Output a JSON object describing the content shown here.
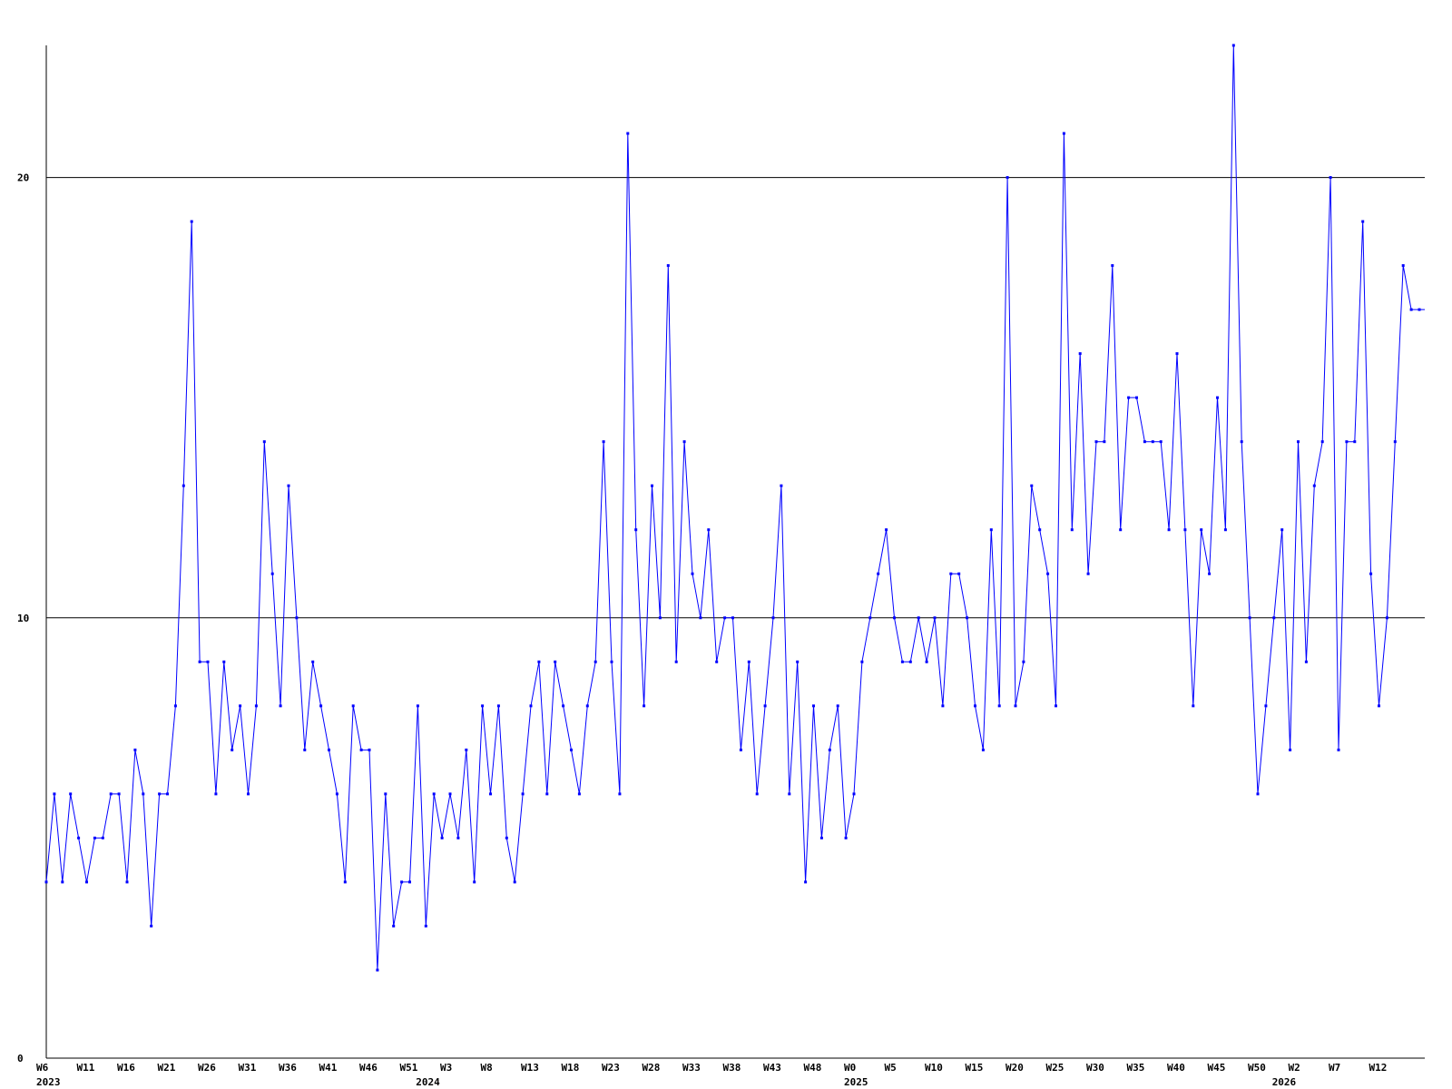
{
  "chart_data": {
    "type": "line",
    "title": "",
    "xlabel": "",
    "ylabel": "",
    "ylim": [
      0,
      23
    ],
    "yticks": [
      {
        "value": 0,
        "label": "0"
      },
      {
        "value": 10,
        "label": "10"
      },
      {
        "value": 20,
        "label": "20"
      }
    ],
    "gridlines_y": [
      10,
      20
    ],
    "grid": "horizontal",
    "colors": {
      "line": "#0000ff",
      "axis": "#000000",
      "grid": "#000000",
      "text": "#000000",
      "background": "#ffffff"
    },
    "x_week_labels": [
      "W6",
      "W11",
      "W16",
      "W21",
      "W26",
      "W31",
      "W36",
      "W41",
      "W46",
      "W51",
      "W3",
      "W8",
      "W13",
      "W18",
      "W23",
      "W28",
      "W33",
      "W38",
      "W43",
      "W48",
      "W0",
      "W5",
      "W10",
      "W15",
      "W20",
      "W25",
      "W30",
      "W35",
      "W40",
      "W45",
      "W50",
      "W2",
      "W7",
      "W12"
    ],
    "x_week_label_indices": [
      0,
      5,
      10,
      15,
      20,
      25,
      30,
      35,
      40,
      45,
      50,
      55,
      60,
      65,
      70,
      75,
      80,
      85,
      90,
      95,
      100,
      105,
      110,
      115,
      120,
      125,
      130,
      135,
      140,
      145,
      150,
      155,
      160,
      165
    ],
    "x_year_labels": [
      {
        "label": "2023",
        "index": 0
      },
      {
        "label": "2024",
        "index": 47
      },
      {
        "label": "2025",
        "index": 100
      },
      {
        "label": "2026",
        "index": 153
      }
    ],
    "series": [
      {
        "values": [
          4,
          6,
          4,
          6,
          5,
          4,
          5,
          5,
          6,
          6,
          4,
          7,
          6,
          3,
          6,
          6,
          8,
          13,
          19,
          9,
          9,
          6,
          9,
          7,
          8,
          6,
          8,
          14,
          11,
          8,
          13,
          10,
          7,
          9,
          8,
          7,
          6,
          4,
          8,
          7,
          7,
          2,
          6,
          3,
          4,
          4,
          8,
          3,
          6,
          5,
          6,
          5,
          7,
          4,
          8,
          6,
          8,
          5,
          4,
          6,
          8,
          9,
          6,
          9,
          8,
          7,
          6,
          8,
          9,
          14,
          9,
          6,
          21,
          12,
          8,
          13,
          10,
          18,
          9,
          14,
          11,
          10,
          12,
          9,
          10,
          10,
          7,
          9,
          6,
          8,
          10,
          13,
          6,
          9,
          4,
          8,
          5,
          7,
          8,
          5,
          6,
          9,
          10,
          11,
          12,
          10,
          9,
          9,
          10,
          9,
          10,
          8,
          11,
          11,
          10,
          8,
          7,
          12,
          8,
          20,
          8,
          9,
          13,
          12,
          11,
          8,
          21,
          12,
          16,
          11,
          14,
          14,
          18,
          12,
          15,
          15,
          14,
          14,
          14,
          12,
          16,
          12,
          8,
          12,
          11,
          15,
          12,
          23,
          14,
          10,
          6,
          8,
          10,
          12,
          7,
          14,
          9,
          13,
          14,
          20,
          7,
          14,
          14,
          19,
          11,
          8,
          10,
          14,
          18,
          17,
          17
        ]
      }
    ]
  }
}
